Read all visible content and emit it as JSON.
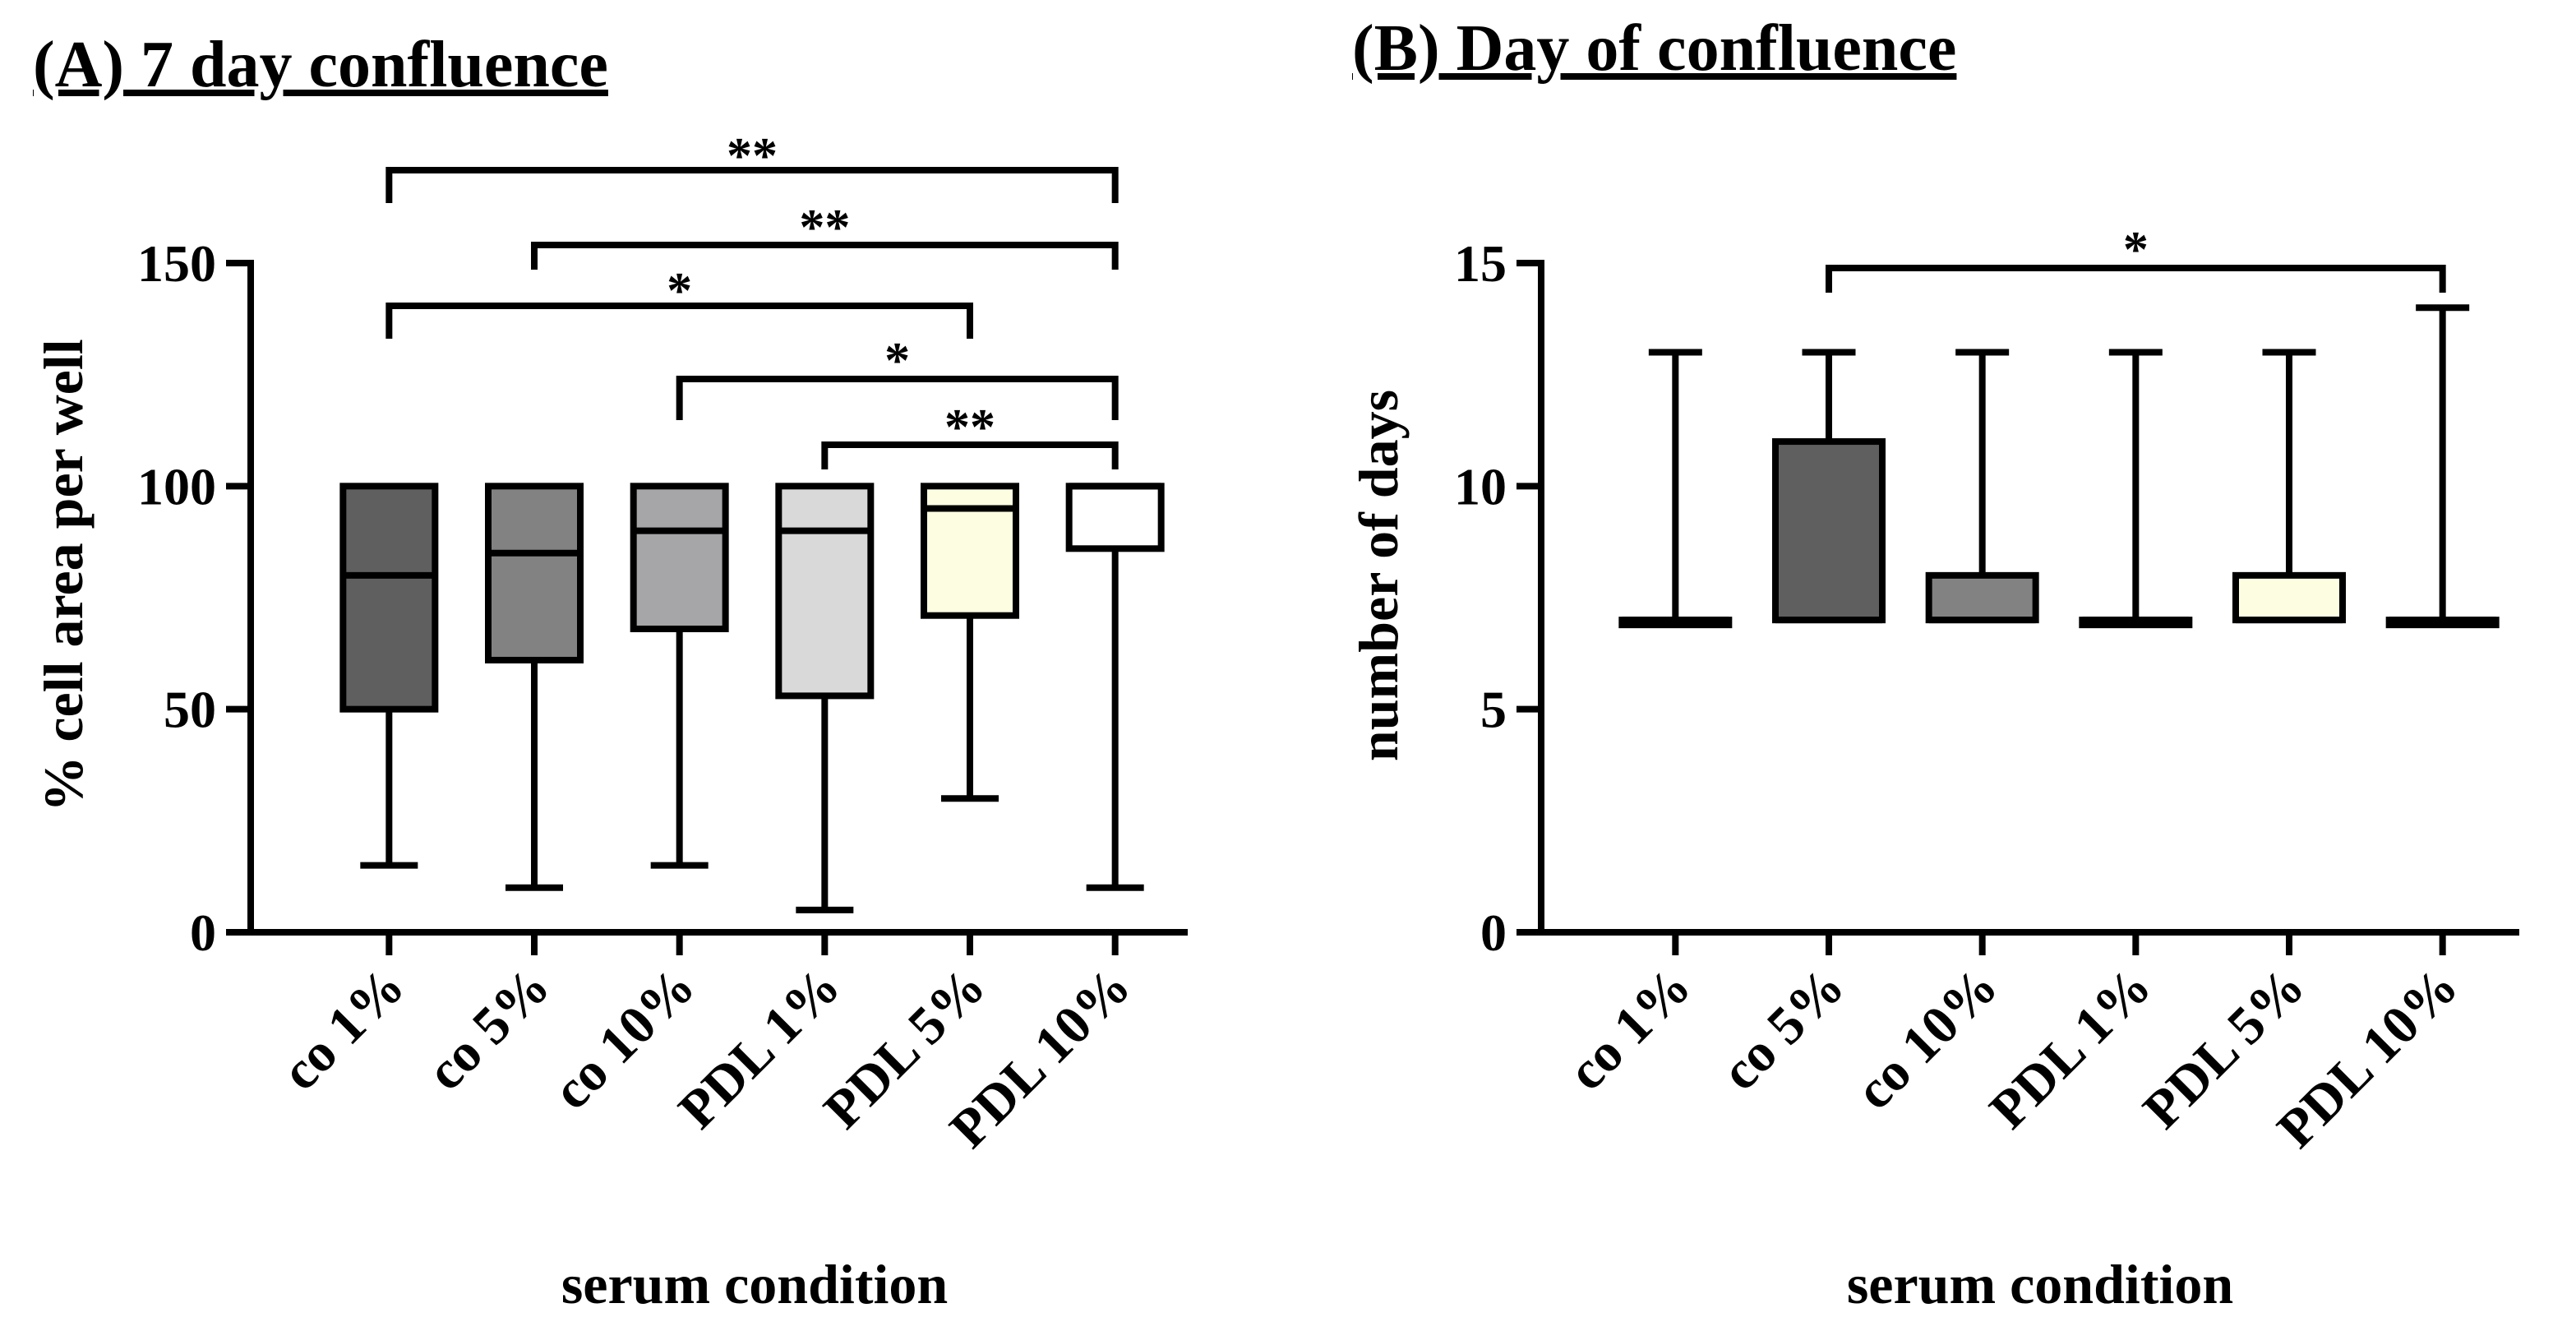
{
  "chart_data": [
    {
      "type": "box",
      "title": "(A) 7 day confluence",
      "xlabel": "serum condition",
      "ylabel": "% cell area per well",
      "ylim": [
        0,
        150
      ],
      "yticks": [
        0,
        50,
        100,
        150
      ],
      "categories": [
        "co 1%",
        "co 5%",
        "co 10%",
        "PDL 1%",
        "PDL 5%",
        "PDL 10%"
      ],
      "boxes": [
        {
          "min": 15,
          "q1": 50,
          "median": 80,
          "q3": 100,
          "max": 100,
          "color": "#5f5f5f"
        },
        {
          "min": 10,
          "q1": 61,
          "median": 85,
          "q3": 100,
          "max": 100,
          "color": "#828282"
        },
        {
          "min": 15,
          "q1": 68,
          "median": 90,
          "q3": 100,
          "max": 100,
          "color": "#a6a6a8"
        },
        {
          "min": 5,
          "q1": 53,
          "median": 90,
          "q3": 100,
          "max": 100,
          "color": "#d9d9d9"
        },
        {
          "min": 30,
          "q1": 71,
          "median": 95,
          "q3": 100,
          "max": 100,
          "color": "#fdfde2"
        },
        {
          "min": 10,
          "q1": 86,
          "median": 100,
          "q3": 100,
          "max": 100,
          "color": "#ffffff"
        }
      ],
      "significance": [
        {
          "from": 0,
          "to": 5,
          "label": "**"
        },
        {
          "from": 1,
          "to": 5,
          "label": "**"
        },
        {
          "from": 0,
          "to": 4,
          "label": "*"
        },
        {
          "from": 2,
          "to": 5,
          "label": "*"
        },
        {
          "from": 3,
          "to": 5,
          "label": "**"
        }
      ]
    },
    {
      "type": "box",
      "title": "(B) Day of confluence",
      "xlabel": "serum condition",
      "ylabel": "number of days",
      "ylim": [
        0,
        15
      ],
      "yticks": [
        0,
        5,
        10,
        15
      ],
      "categories": [
        "co 1%",
        "co 5%",
        "co 10%",
        "PDL 1%",
        "PDL 5%",
        "PDL 10%"
      ],
      "boxes": [
        {
          "min": 7,
          "q1": 7,
          "median": 7,
          "q3": 7,
          "max": 13,
          "color": "#5f5f5f"
        },
        {
          "min": 7,
          "q1": 7,
          "median": 7,
          "q3": 11,
          "max": 13,
          "color": "#5f5f5f"
        },
        {
          "min": 7,
          "q1": 7,
          "median": 7,
          "q3": 8,
          "max": 13,
          "color": "#828282"
        },
        {
          "min": 7,
          "q1": 7,
          "median": 7,
          "q3": 7,
          "max": 13,
          "color": "#d9d9d9"
        },
        {
          "min": 7,
          "q1": 7,
          "median": 7,
          "q3": 8,
          "max": 13,
          "color": "#fdfde2"
        },
        {
          "min": 7,
          "q1": 7,
          "median": 7,
          "q3": 7,
          "max": 14,
          "color": "#ffffff"
        }
      ],
      "significance": [
        {
          "from": 1,
          "to": 5,
          "label": "*"
        }
      ]
    }
  ]
}
